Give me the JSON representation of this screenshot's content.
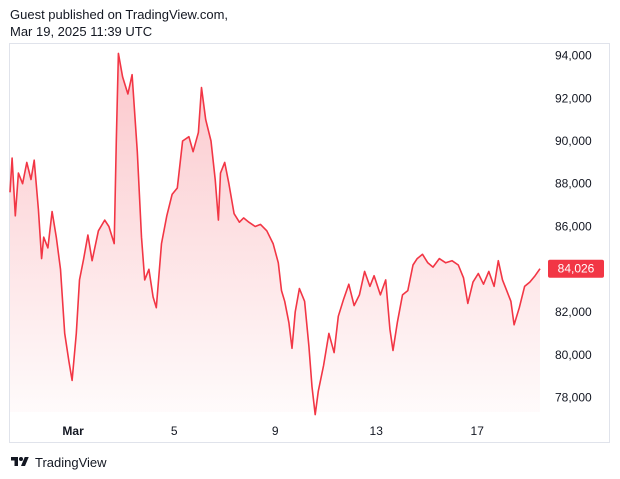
{
  "header": {
    "line1": "Guest published on TradingView.com,",
    "line2": "Mar 19, 2025 11:39 UTC"
  },
  "footer": {
    "brand": "TradingView",
    "logo_icon": "tradingview-logo-icon"
  },
  "colors": {
    "line": "#f23645",
    "fill_top": "#f23645",
    "price_label_bg": "#f23645",
    "border": "#e0e3eb"
  },
  "chart_data": {
    "type": "area",
    "title": "",
    "xlabel": "",
    "ylabel": "",
    "ylim": [
      77000,
      94500
    ],
    "y_ticks": [
      78000,
      80000,
      82000,
      84000,
      86000,
      88000,
      90000,
      92000,
      94000
    ],
    "y_tick_labels": [
      "78,000",
      "80,000",
      "82,000",
      "84,000",
      "86,000",
      "88,000",
      "90,000",
      "92,000",
      "94,000"
    ],
    "x_ticks": [
      {
        "label": "Mar",
        "date": "2025-03-01"
      },
      {
        "label": "5",
        "date": "2025-03-05"
      },
      {
        "label": "9",
        "date": "2025-03-09"
      },
      {
        "label": "13",
        "date": "2025-03-13"
      },
      {
        "label": "17",
        "date": "2025-03-17"
      }
    ],
    "last_price_label": "84,026",
    "last_price": 84026,
    "grid": false,
    "series": [
      {
        "values": [
          [
            "2025-02-26 12:00",
            87600
          ],
          [
            "2025-02-26 14:00",
            89200
          ],
          [
            "2025-02-26 17:00",
            86500
          ],
          [
            "2025-02-26 20:00",
            88500
          ],
          [
            "2025-02-27 00:00",
            88000
          ],
          [
            "2025-02-27 04:00",
            89000
          ],
          [
            "2025-02-27 08:00",
            88200
          ],
          [
            "2025-02-27 11:00",
            89100
          ],
          [
            "2025-02-27 15:00",
            86800
          ],
          [
            "2025-02-27 18:00",
            84500
          ],
          [
            "2025-02-27 20:00",
            85500
          ],
          [
            "2025-02-28 00:00",
            85000
          ],
          [
            "2025-02-28 04:00",
            86700
          ],
          [
            "2025-02-28 08:00",
            85500
          ],
          [
            "2025-02-28 12:00",
            84000
          ],
          [
            "2025-02-28 16:00",
            81000
          ],
          [
            "2025-02-28 20:00",
            79700
          ],
          [
            "2025-02-28 23:00",
            78800
          ],
          [
            "2025-03-01 03:00",
            81000
          ],
          [
            "2025-03-01 06:00",
            83500
          ],
          [
            "2025-03-01 10:00",
            84500
          ],
          [
            "2025-03-01 14:00",
            85600
          ],
          [
            "2025-03-01 18:00",
            84400
          ],
          [
            "2025-03-02 00:00",
            85800
          ],
          [
            "2025-03-02 06:00",
            86300
          ],
          [
            "2025-03-02 10:00",
            86000
          ],
          [
            "2025-03-02 15:00",
            85200
          ],
          [
            "2025-03-02 17:00",
            90000
          ],
          [
            "2025-03-02 19:00",
            94100
          ],
          [
            "2025-03-02 23:00",
            93000
          ],
          [
            "2025-03-03 04:00",
            92200
          ],
          [
            "2025-03-03 08:00",
            93100
          ],
          [
            "2025-03-03 13:00",
            89500
          ],
          [
            "2025-03-03 17:00",
            85500
          ],
          [
            "2025-03-03 20:00",
            83500
          ],
          [
            "2025-03-04 00:00",
            84000
          ],
          [
            "2025-03-04 04:00",
            82700
          ],
          [
            "2025-03-04 07:00",
            82200
          ],
          [
            "2025-03-04 12:00",
            85200
          ],
          [
            "2025-03-04 17:00",
            86500
          ],
          [
            "2025-03-04 22:00",
            87500
          ],
          [
            "2025-03-05 03:00",
            87800
          ],
          [
            "2025-03-05 08:00",
            90000
          ],
          [
            "2025-03-05 14:00",
            90200
          ],
          [
            "2025-03-05 18:00",
            89500
          ],
          [
            "2025-03-05 23:00",
            90400
          ],
          [
            "2025-03-06 02:00",
            92500
          ],
          [
            "2025-03-06 06:00",
            91000
          ],
          [
            "2025-03-06 11:00",
            90000
          ],
          [
            "2025-03-06 15:00",
            88200
          ],
          [
            "2025-03-06 18:00",
            86300
          ],
          [
            "2025-03-06 20:00",
            88500
          ],
          [
            "2025-03-07 00:00",
            89000
          ],
          [
            "2025-03-07 04:00",
            88000
          ],
          [
            "2025-03-07 09:00",
            86600
          ],
          [
            "2025-03-07 14:00",
            86200
          ],
          [
            "2025-03-07 18:00",
            86400
          ],
          [
            "2025-03-07 23:00",
            86200
          ],
          [
            "2025-03-08 05:00",
            86000
          ],
          [
            "2025-03-08 10:00",
            86100
          ],
          [
            "2025-03-08 16:00",
            85800
          ],
          [
            "2025-03-08 22:00",
            85200
          ],
          [
            "2025-03-09 03:00",
            84300
          ],
          [
            "2025-03-09 06:00",
            83000
          ],
          [
            "2025-03-09 09:00",
            82500
          ],
          [
            "2025-03-09 13:00",
            81500
          ],
          [
            "2025-03-09 16:00",
            80300
          ],
          [
            "2025-03-09 19:00",
            82000
          ],
          [
            "2025-03-09 23:00",
            83100
          ],
          [
            "2025-03-10 04:00",
            82500
          ],
          [
            "2025-03-10 08:00",
            80400
          ],
          [
            "2025-03-10 11:00",
            78500
          ],
          [
            "2025-03-10 14:00",
            77200
          ],
          [
            "2025-03-10 17:00",
            78300
          ],
          [
            "2025-03-10 22:00",
            79500
          ],
          [
            "2025-03-11 03:00",
            81000
          ],
          [
            "2025-03-11 08:00",
            80100
          ],
          [
            "2025-03-11 12:00",
            81800
          ],
          [
            "2025-03-11 17:00",
            82600
          ],
          [
            "2025-03-11 22:00",
            83300
          ],
          [
            "2025-03-12 03:00",
            82300
          ],
          [
            "2025-03-12 08:00",
            82800
          ],
          [
            "2025-03-12 13:00",
            83900
          ],
          [
            "2025-03-12 18:00",
            83200
          ],
          [
            "2025-03-12 22:00",
            83700
          ],
          [
            "2025-03-13 04:00",
            82800
          ],
          [
            "2025-03-13 09:00",
            83500
          ],
          [
            "2025-03-13 13:00",
            81200
          ],
          [
            "2025-03-13 16:00",
            80200
          ],
          [
            "2025-03-13 20:00",
            81500
          ],
          [
            "2025-03-14 01:00",
            82800
          ],
          [
            "2025-03-14 06:00",
            83000
          ],
          [
            "2025-03-14 11:00",
            84200
          ],
          [
            "2025-03-14 15:00",
            84500
          ],
          [
            "2025-03-14 20:00",
            84700
          ],
          [
            "2025-03-15 01:00",
            84300
          ],
          [
            "2025-03-15 06:00",
            84100
          ],
          [
            "2025-03-15 12:00",
            84500
          ],
          [
            "2025-03-15 18:00",
            84300
          ],
          [
            "2025-03-16 00:00",
            84400
          ],
          [
            "2025-03-16 06:00",
            84200
          ],
          [
            "2025-03-16 11:00",
            83600
          ],
          [
            "2025-03-16 15:00",
            82400
          ],
          [
            "2025-03-16 20:00",
            83400
          ],
          [
            "2025-03-17 01:00",
            83800
          ],
          [
            "2025-03-17 06:00",
            83300
          ],
          [
            "2025-03-17 11:00",
            83900
          ],
          [
            "2025-03-17 16:00",
            83200
          ],
          [
            "2025-03-17 20:00",
            84400
          ],
          [
            "2025-03-18 00:00",
            83500
          ],
          [
            "2025-03-18 04:00",
            83000
          ],
          [
            "2025-03-18 08:00",
            82500
          ],
          [
            "2025-03-18 11:00",
            81400
          ],
          [
            "2025-03-18 16:00",
            82200
          ],
          [
            "2025-03-18 21:00",
            83200
          ],
          [
            "2025-03-19 02:00",
            83400
          ],
          [
            "2025-03-19 07:00",
            83700
          ],
          [
            "2025-03-19 11:39",
            84026
          ]
        ]
      }
    ]
  }
}
